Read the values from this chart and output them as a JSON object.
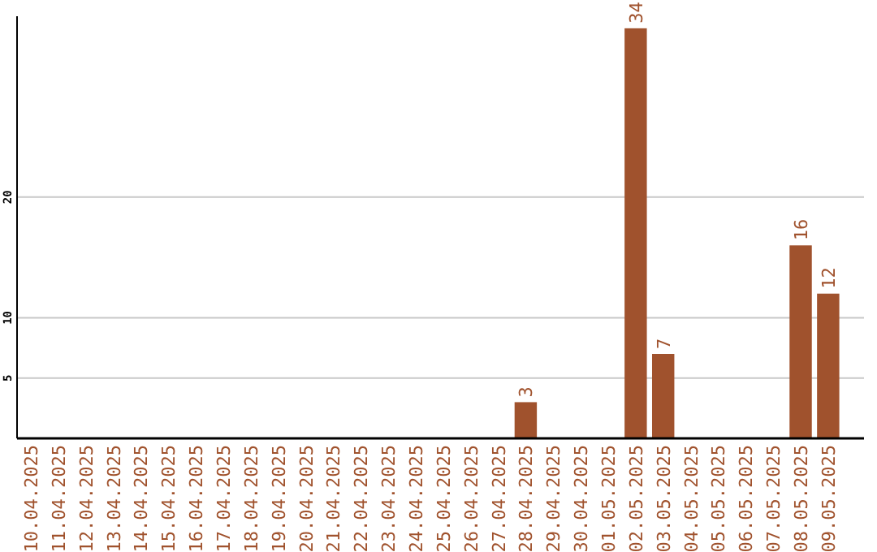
{
  "chart_data": {
    "type": "bar",
    "categories": [
      "10.04.2025",
      "11.04.2025",
      "12.04.2025",
      "13.04.2025",
      "14.04.2025",
      "15.04.2025",
      "16.04.2025",
      "17.04.2025",
      "18.04.2025",
      "19.04.2025",
      "20.04.2025",
      "21.04.2025",
      "22.04.2025",
      "23.04.2025",
      "24.04.2025",
      "25.04.2025",
      "26.04.2025",
      "27.04.2025",
      "28.04.2025",
      "29.04.2025",
      "30.04.2025",
      "01.05.2025",
      "02.05.2025",
      "03.05.2025",
      "04.05.2025",
      "05.05.2025",
      "06.05.2025",
      "07.05.2025",
      "08.05.2025",
      "09.05.2025"
    ],
    "values": [
      0,
      0,
      0,
      0,
      0,
      0,
      0,
      0,
      0,
      0,
      0,
      0,
      0,
      0,
      0,
      0,
      0,
      0,
      3,
      0,
      0,
      0,
      34,
      7,
      0,
      0,
      0,
      0,
      16,
      12
    ],
    "value_labels": [
      null,
      null,
      null,
      null,
      null,
      null,
      null,
      null,
      null,
      null,
      null,
      null,
      null,
      null,
      null,
      null,
      null,
      null,
      "3",
      null,
      null,
      null,
      "34",
      "7",
      null,
      null,
      null,
      null,
      "16",
      "12"
    ],
    "color": "#a0522d",
    "ylim": [
      0,
      35
    ],
    "yticks": [
      5,
      10,
      20
    ],
    "grid": "y"
  }
}
